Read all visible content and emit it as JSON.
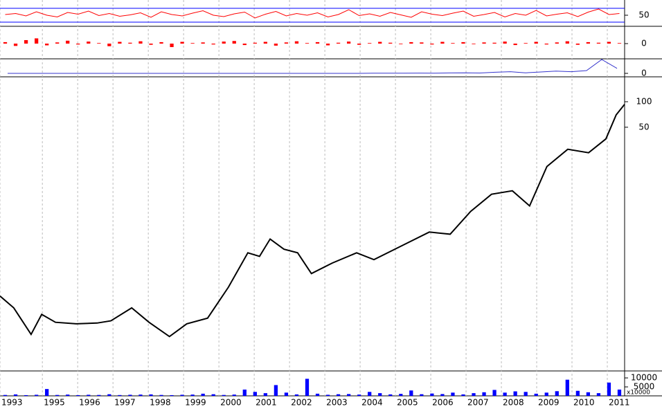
{
  "chart_data": [
    {
      "type": "line",
      "color": "#ff0000",
      "ylim": [
        20,
        90
      ],
      "yticks": [
        50
      ],
      "hlines": [
        70,
        30
      ],
      "hline_color": "#0000ff",
      "values": [
        52,
        55,
        48,
        60,
        50,
        45,
        58,
        53,
        62,
        49,
        55,
        47,
        51,
        57,
        44,
        60,
        52,
        48,
        56,
        63,
        50,
        46,
        54,
        59,
        42,
        53,
        61,
        48,
        55,
        50,
        57,
        45,
        52,
        66,
        49,
        54,
        47,
        58,
        51,
        44,
        60,
        53,
        49,
        56,
        62,
        47,
        52,
        58,
        45,
        55,
        50,
        64,
        48,
        53,
        57,
        46,
        59,
        68,
        52,
        55
      ]
    },
    {
      "type": "bar",
      "color": "#ff0000",
      "ylim": [
        -50,
        50
      ],
      "yticks": [
        0
      ],
      "values": [
        5,
        -8,
        12,
        18,
        -6,
        4,
        10,
        -3,
        7,
        2,
        -9,
        6,
        3,
        8,
        -4,
        5,
        -12,
        6,
        2,
        4,
        -3,
        7,
        9,
        -5,
        3,
        6,
        -7,
        4,
        8,
        2,
        5,
        -6,
        3,
        7,
        -4,
        2,
        6,
        3,
        -2,
        5,
        4,
        -3,
        6,
        2,
        5,
        -2,
        4,
        3,
        7,
        -5,
        2,
        6,
        -3,
        4,
        8,
        -4,
        5,
        3,
        6,
        2
      ]
    },
    {
      "type": "line",
      "color": "#3333cc",
      "ylim": [
        -5,
        25
      ],
      "yticks": [
        0
      ],
      "values": [
        0,
        0,
        0,
        0,
        0,
        0,
        0,
        0,
        0,
        0,
        0,
        0,
        0,
        0,
        0,
        0,
        0,
        0,
        0,
        0,
        0,
        0,
        0,
        0,
        0.2,
        0.3,
        0.2,
        0.5,
        0.4,
        0.8,
        1,
        0.6,
        2,
        3,
        1,
        2.5,
        4,
        3,
        5,
        25,
        9
      ]
    },
    {
      "type": "line",
      "color": "#000000",
      "log_scale": true,
      "ylim": [
        0.068,
        179
      ],
      "yticks": [
        50,
        100
      ],
      "xlim": [
        1993.8,
        2011.49
      ],
      "xticks": [
        {
          "value": 1993.8,
          "label": "1993"
        },
        1995,
        1996,
        1997,
        1998,
        1999,
        2000,
        2001,
        2002,
        2003,
        2004,
        2005,
        2006,
        2007,
        2008,
        2009,
        2010,
        2011
      ],
      "grid": true,
      "x": [
        1993.8,
        1994.19,
        1994.68,
        1994.98,
        1995.37,
        1995.96,
        1996.55,
        1996.94,
        1997.53,
        1998.02,
        1998.6,
        1999.09,
        1999.68,
        2000.27,
        2000.82,
        2001.15,
        2001.45,
        2001.84,
        2002.23,
        2002.62,
        2003.21,
        2003.9,
        2004.39,
        2005.17,
        2005.96,
        2006.55,
        2007.13,
        2007.72,
        2008.31,
        2008.8,
        2009.29,
        2009.88,
        2010.47,
        2010.96,
        2011.25,
        2011.49
      ],
      "values": [
        0.51,
        0.37,
        0.18,
        0.31,
        0.25,
        0.24,
        0.245,
        0.26,
        0.37,
        0.25,
        0.17,
        0.24,
        0.28,
        0.65,
        1.65,
        1.5,
        2.4,
        1.82,
        1.65,
        0.94,
        1.25,
        1.65,
        1.37,
        1.99,
        2.9,
        2.74,
        5.08,
        8.1,
        8.9,
        5.9,
        17.2,
        27.5,
        25,
        36.4,
        70,
        93
      ]
    },
    {
      "type": "bar",
      "color": "#0000ff",
      "ylim": [
        0,
        13500
      ],
      "yticks": [
        10000,
        5000
      ],
      "unit_label": "x10000",
      "values": [
        500,
        800,
        400,
        600,
        3800,
        500,
        700,
        400,
        600,
        500,
        900,
        450,
        600,
        700,
        800,
        500,
        400,
        600,
        700,
        1200,
        900,
        500,
        700,
        3500,
        2200,
        1500,
        6000,
        1800,
        800,
        9500,
        1200,
        600,
        900,
        1000,
        700,
        2200,
        1500,
        800,
        1100,
        3000,
        900,
        1300,
        1000,
        1800,
        800,
        1500,
        2000,
        3300,
        1800,
        2500,
        2200,
        1200,
        1800,
        2600,
        9000,
        2800,
        2000,
        1500,
        7400,
        3500
      ]
    }
  ]
}
